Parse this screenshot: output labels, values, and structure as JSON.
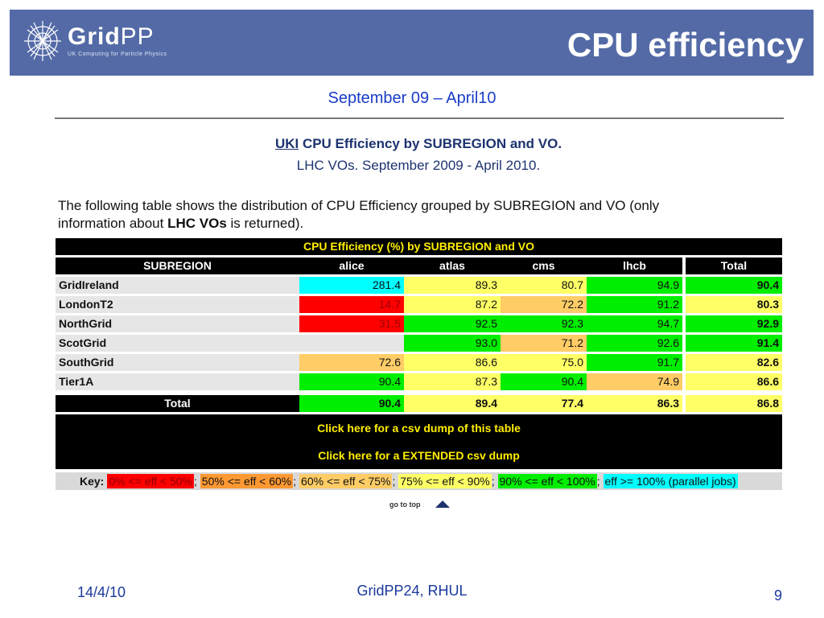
{
  "header": {
    "logo_text_a": "Grid",
    "logo_text_b": "PP",
    "logo_sub": "UK Computing for Particle Physics",
    "title": "CPU efficiency"
  },
  "subtitle": "September 09 – April10",
  "report": {
    "title_uki": "UKI",
    "title_rest": " CPU Efficiency by SUBREGION and VO.",
    "subtitle": "LHC VOs. September 2009 - April 2010.",
    "desc_a": "The following table shows the distribution of CPU Efficiency grouped by SUBREGION and VO (only information about ",
    "desc_bold": "LHC VOs",
    "desc_b": " is returned)."
  },
  "table": {
    "caption": "CPU Efficiency (%) by SUBREGION and VO",
    "headers": [
      "SUBREGION",
      "alice",
      "atlas",
      "cms",
      "lhcb",
      "Total"
    ],
    "rows": [
      {
        "label": "GridIreland",
        "cells": [
          {
            "v": "281.4",
            "c": "#00ffff",
            "t": "#111111"
          },
          {
            "v": "89.3",
            "c": "#ffff66",
            "t": "#111111"
          },
          {
            "v": "80.7",
            "c": "#ffff66",
            "t": "#111111"
          },
          {
            "v": "94.9",
            "c": "#00ee00",
            "t": "#111111"
          },
          {
            "v": "90.4",
            "c": "#00ee00",
            "t": "#111111"
          }
        ]
      },
      {
        "label": "LondonT2",
        "cells": [
          {
            "v": "14.7",
            "c": "#ff0000",
            "t": "#a00000"
          },
          {
            "v": "87.2",
            "c": "#ffff66",
            "t": "#111111"
          },
          {
            "v": "72.2",
            "c": "#ffcc66",
            "t": "#111111"
          },
          {
            "v": "91.2",
            "c": "#00ee00",
            "t": "#111111"
          },
          {
            "v": "80.3",
            "c": "#ffff66",
            "t": "#111111"
          }
        ]
      },
      {
        "label": "NorthGrid",
        "cells": [
          {
            "v": "31.5",
            "c": "#ff0000",
            "t": "#a00000"
          },
          {
            "v": "92.5",
            "c": "#00ee00",
            "t": "#111111"
          },
          {
            "v": "92.3",
            "c": "#00ee00",
            "t": "#111111"
          },
          {
            "v": "94.7",
            "c": "#00ee00",
            "t": "#111111"
          },
          {
            "v": "92.9",
            "c": "#00ee00",
            "t": "#111111"
          }
        ]
      },
      {
        "label": "ScotGrid",
        "cells": [
          {
            "v": "",
            "c": "#e6e6e6",
            "t": "#111111"
          },
          {
            "v": "93.0",
            "c": "#00ee00",
            "t": "#111111"
          },
          {
            "v": "71.2",
            "c": "#ffcc66",
            "t": "#111111"
          },
          {
            "v": "92.6",
            "c": "#00ee00",
            "t": "#111111"
          },
          {
            "v": "91.4",
            "c": "#00ee00",
            "t": "#111111"
          }
        ]
      },
      {
        "label": "SouthGrid",
        "cells": [
          {
            "v": "72.6",
            "c": "#ffcc66",
            "t": "#111111"
          },
          {
            "v": "86.6",
            "c": "#ffff66",
            "t": "#111111"
          },
          {
            "v": "75.0",
            "c": "#ffff66",
            "t": "#111111"
          },
          {
            "v": "91.7",
            "c": "#00ee00",
            "t": "#111111"
          },
          {
            "v": "82.6",
            "c": "#ffff66",
            "t": "#111111"
          }
        ]
      },
      {
        "label": "Tier1A",
        "cells": [
          {
            "v": "90.4",
            "c": "#00ee00",
            "t": "#111111"
          },
          {
            "v": "87.3",
            "c": "#ffff66",
            "t": "#111111"
          },
          {
            "v": "90.4",
            "c": "#00ee00",
            "t": "#111111"
          },
          {
            "v": "74.9",
            "c": "#ffcc66",
            "t": "#111111"
          },
          {
            "v": "86.6",
            "c": "#ffff66",
            "t": "#111111"
          }
        ]
      }
    ],
    "total": {
      "label": "Total",
      "cells": [
        {
          "v": "90.4",
          "c": "#00ee00",
          "t": "#111111"
        },
        {
          "v": "89.4",
          "c": "#ffff66",
          "t": "#111111"
        },
        {
          "v": "77.4",
          "c": "#ffff66",
          "t": "#111111"
        },
        {
          "v": "86.3",
          "c": "#ffff66",
          "t": "#111111"
        },
        {
          "v": "86.8",
          "c": "#ffff66",
          "t": "#111111"
        }
      ]
    },
    "link_csv": "Click here for a csv dump of this table",
    "link_extended": "Click here for a EXTENDED csv dump"
  },
  "key": {
    "label": "Key:",
    "items": [
      {
        "text": "0% <= eff < 50%",
        "bg": "#ff0000",
        "fg": "#8a0000"
      },
      {
        "text": "50% <= eff < 60%",
        "bg": "#ff9933",
        "fg": "#111111"
      },
      {
        "text": "60% <= eff < 75%",
        "bg": "#ffcc66",
        "fg": "#111111"
      },
      {
        "text": "75% <= eff < 90%",
        "bg": "#ffff66",
        "fg": "#111111"
      },
      {
        "text": "90% <= eff < 100%",
        "bg": "#00ee00",
        "fg": "#111111"
      },
      {
        "text": "eff >= 100% (parallel jobs)",
        "bg": "#00ffff",
        "fg": "#111111"
      }
    ],
    "sep": ";"
  },
  "go_to_top": "go to top",
  "footer": {
    "date": "14/4/10",
    "center": "GridPP24, RHUL",
    "page": "9"
  }
}
